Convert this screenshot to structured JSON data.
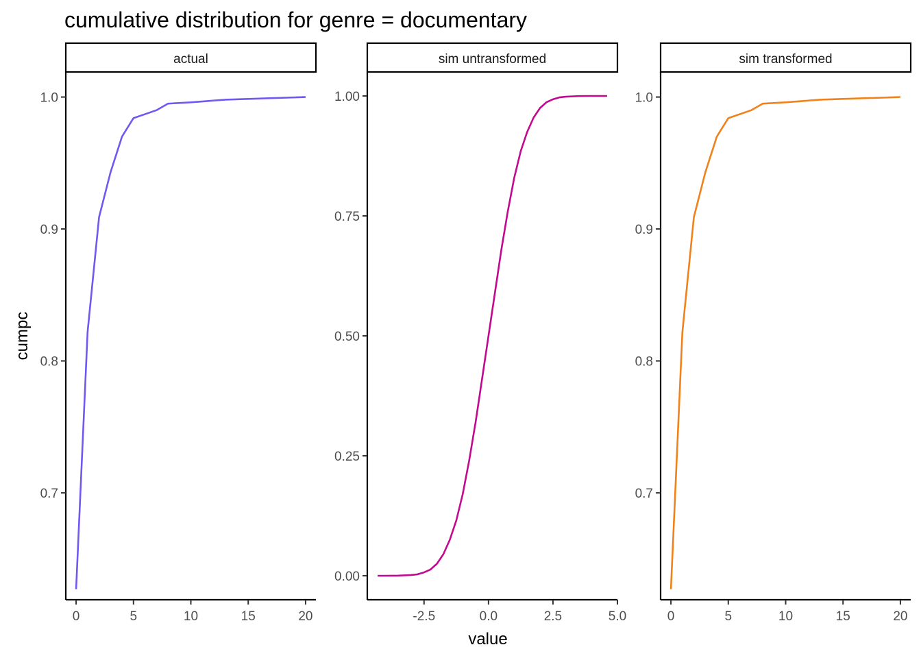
{
  "title": "cumulative distribution for genre = documentary",
  "xlabel": "value",
  "ylabel": "cumpc",
  "chart_data": [
    {
      "type": "line",
      "panel": "actual",
      "color": "#6f5af0",
      "x": [
        0,
        1,
        2,
        3,
        4,
        5,
        7,
        8,
        10,
        13,
        20
      ],
      "y": [
        0.627,
        0.822,
        0.909,
        0.943,
        0.97,
        0.984,
        0.99,
        0.995,
        0.996,
        0.998,
        1.0
      ],
      "xlim": [
        -0.9,
        20.9
      ],
      "ylim": [
        0.619,
        1.019
      ],
      "xticks": [
        0,
        5,
        10,
        15,
        20
      ],
      "xtick_labels": [
        "0",
        "5",
        "10",
        "15",
        "20"
      ],
      "yticks": [
        0.7,
        0.8,
        0.9,
        1.0
      ],
      "ytick_labels": [
        "0.7",
        "0.8",
        "0.9",
        "1.0"
      ]
    },
    {
      "type": "line",
      "panel": "sim untransformed",
      "color": "#c20a8e",
      "x": [
        -4.3,
        -4.0,
        -3.5,
        -3.0,
        -2.75,
        -2.5,
        -2.25,
        -2.0,
        -1.75,
        -1.5,
        -1.25,
        -1.0,
        -0.75,
        -0.5,
        -0.25,
        0.0,
        0.25,
        0.5,
        0.75,
        1.0,
        1.25,
        1.5,
        1.75,
        2.0,
        2.25,
        2.5,
        2.75,
        3.0,
        3.5,
        4.0,
        4.6
      ],
      "y": [
        0.0,
        0.0,
        0.0002,
        0.0015,
        0.003,
        0.007,
        0.013,
        0.025,
        0.045,
        0.075,
        0.115,
        0.17,
        0.24,
        0.32,
        0.41,
        0.5,
        0.59,
        0.68,
        0.76,
        0.83,
        0.885,
        0.925,
        0.955,
        0.975,
        0.987,
        0.993,
        0.997,
        0.9985,
        0.9998,
        1.0,
        1.0
      ],
      "xlim": [
        -4.7,
        5.0
      ],
      "ylim": [
        -0.05,
        1.05
      ],
      "xticks": [
        -2.5,
        0.0,
        2.5,
        5.0
      ],
      "xtick_labels": [
        "-2.5",
        "0.0",
        "2.5",
        "5.0"
      ],
      "yticks": [
        0.0,
        0.25,
        0.5,
        0.75,
        1.0
      ],
      "ytick_labels": [
        "0.00",
        "0.25",
        "0.50",
        "0.75",
        "1.00"
      ]
    },
    {
      "type": "line",
      "panel": "sim transformed",
      "color": "#f0821c",
      "x": [
        0,
        1,
        2,
        3,
        4,
        5,
        7,
        8,
        10,
        13,
        20
      ],
      "y": [
        0.627,
        0.822,
        0.909,
        0.943,
        0.97,
        0.984,
        0.99,
        0.995,
        0.996,
        0.998,
        1.0
      ],
      "xlim": [
        -0.9,
        20.9
      ],
      "ylim": [
        0.619,
        1.019
      ],
      "xticks": [
        0,
        5,
        10,
        15,
        20
      ],
      "xtick_labels": [
        "0",
        "5",
        "10",
        "15",
        "20"
      ],
      "yticks": [
        0.7,
        0.8,
        0.9,
        1.0
      ],
      "ytick_labels": [
        "0.7",
        "0.8",
        "0.9",
        "1.0"
      ]
    }
  ]
}
